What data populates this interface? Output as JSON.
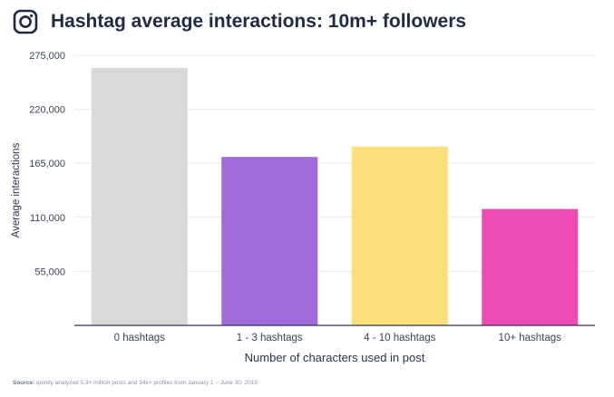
{
  "header": {
    "title": "Hashtag average interactions: 10m+ followers",
    "logo_icon": "instagram-icon"
  },
  "footer": {
    "source_label": "Source:",
    "source_text": "quintly analyzed 5.3+ million posts and 34k+ profiles from January 1 – June 30, 2019"
  },
  "chart_data": {
    "type": "bar",
    "title": "Hashtag average interactions: 10m+ followers",
    "xlabel": "Number of characters used in post",
    "ylabel": "Average interactions",
    "categories": [
      "0 hashtags",
      "1 - 3 hashtags",
      "4 - 10 hashtags",
      "10+ hashtags"
    ],
    "values": [
      262000,
      171500,
      182000,
      118500
    ],
    "colors": [
      "#d9d9d9",
      "#a06ad9",
      "#fddf7a",
      "#ee4ab4"
    ],
    "ylim": [
      0,
      275000
    ],
    "yticks": [
      55000,
      110000,
      165000,
      220000,
      275000
    ],
    "ytick_labels": [
      "55,000",
      "110,000",
      "165,000",
      "220,000",
      "275,000"
    ],
    "grid": true,
    "legend": "none"
  }
}
